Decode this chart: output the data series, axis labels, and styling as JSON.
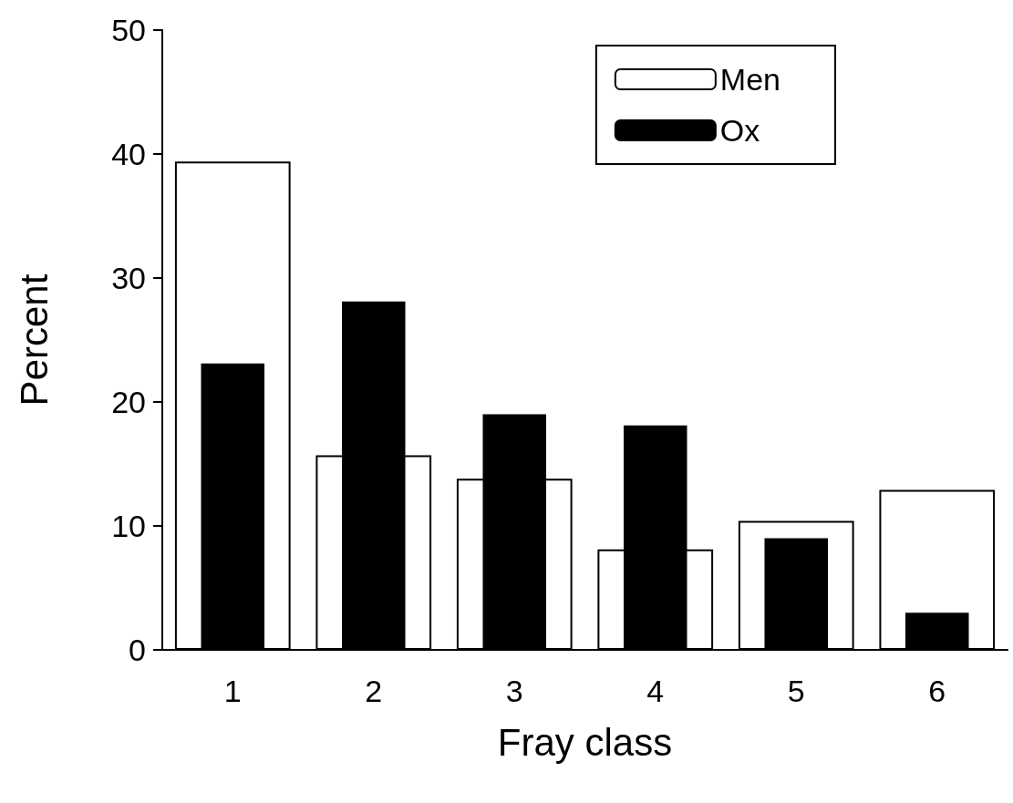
{
  "chart_data": {
    "type": "bar",
    "xlabel": "Fray class",
    "ylabel": "Percent",
    "categories": [
      "1",
      "2",
      "3",
      "4",
      "5",
      "6"
    ],
    "series": [
      {
        "name": "Men",
        "color": "#ffffff",
        "values": [
          39.4,
          15.7,
          13.8,
          8.1,
          10.4,
          12.9
        ]
      },
      {
        "name": "Ox",
        "color": "#000000",
        "values": [
          23.1,
          28.1,
          19.0,
          18.1,
          9.0,
          3.0
        ]
      }
    ],
    "ylim": [
      0,
      50
    ],
    "yticks": [
      0,
      10,
      20,
      30,
      40,
      50
    ],
    "grid": false,
    "legend": "top right"
  }
}
